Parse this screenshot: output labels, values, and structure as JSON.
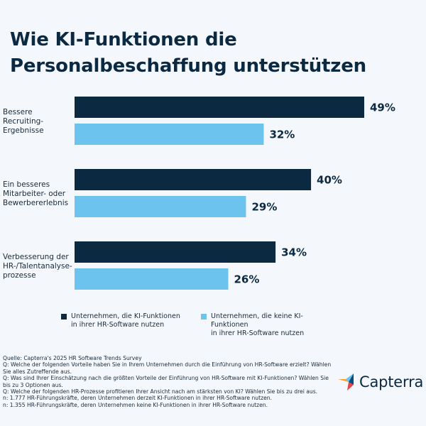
{
  "header": {
    "title": "Wie KI-Funktionen die Personalbeschaffung unterstützen"
  },
  "chart_data": {
    "type": "bar",
    "orientation": "horizontal",
    "categories": [
      [
        "Bessere",
        "Recruiting-",
        "Ergebnisse"
      ],
      [
        "Ein besseres",
        "Mitarbeiter- oder",
        "Bewerbererlebnis"
      ],
      [
        "Verbesserung der",
        "HR-/Talentanalyse-",
        "prozesse"
      ]
    ],
    "series": [
      {
        "name": "Unternehmen, die KI-Funktionen in ihrer HR-Software nutzen",
        "values": [
          49,
          40,
          34
        ],
        "labels": [
          "49%",
          "40%",
          "34%"
        ],
        "color": "#0b2a42"
      },
      {
        "name": "Unternehmen, die keine KI-Funktionen in ihrer HR-Software nutzen",
        "values": [
          32,
          29,
          26
        ],
        "labels": [
          "32%",
          "29%",
          "26%"
        ],
        "color": "#6cc4ee"
      }
    ],
    "xlim": [
      0,
      49
    ],
    "grid": false,
    "legend_position": "bottom"
  },
  "legend": {
    "items": [
      {
        "line1": "Unternehmen, die KI-Funktionen",
        "line2": "in ihrer HR-Software nutzen",
        "color": "#0b2a42"
      },
      {
        "line1": "Unternehmen, die keine KI-Funktionen",
        "line2": "in ihrer HR-Software nutzen",
        "color": "#6cc4ee"
      }
    ]
  },
  "footer": {
    "notes": [
      "Quelle: Capterra's 2025 HR Software Trends Survey",
      "Q: Welche der folgenden Vorteile haben Sie in Ihrem Unternehmen durch die Einführung von HR-Software erzielt? Wählen Sie alles Zutreffende aus.",
      "Q: Was sind Ihrer Einschätzung nach die größten Vorteile der Einführung von HR-Software mit KI-Funktionen? Wählen Sie bis zu 3 Optionen aus.",
      "Q: Welche der folgenden HR-Prozesse profitieren Ihrer Ansicht nach am stärksten von KI? Wählen Sie bis zu drei aus.",
      "n: 1.777 HR-Führungskräfte, deren Unternehmen derzeit KI-Funktionen in ihrer HR-Software nutzen.",
      "n: 1.355 HR-Führungskräfte, deren Unternehmen keine KI-Funktionen in ihrer HR-Software nutzen."
    ],
    "logo_text": "Capterra",
    "logo_colors": [
      "#ff9d28",
      "#68c5ed",
      "#044d80",
      "#e54747"
    ]
  }
}
